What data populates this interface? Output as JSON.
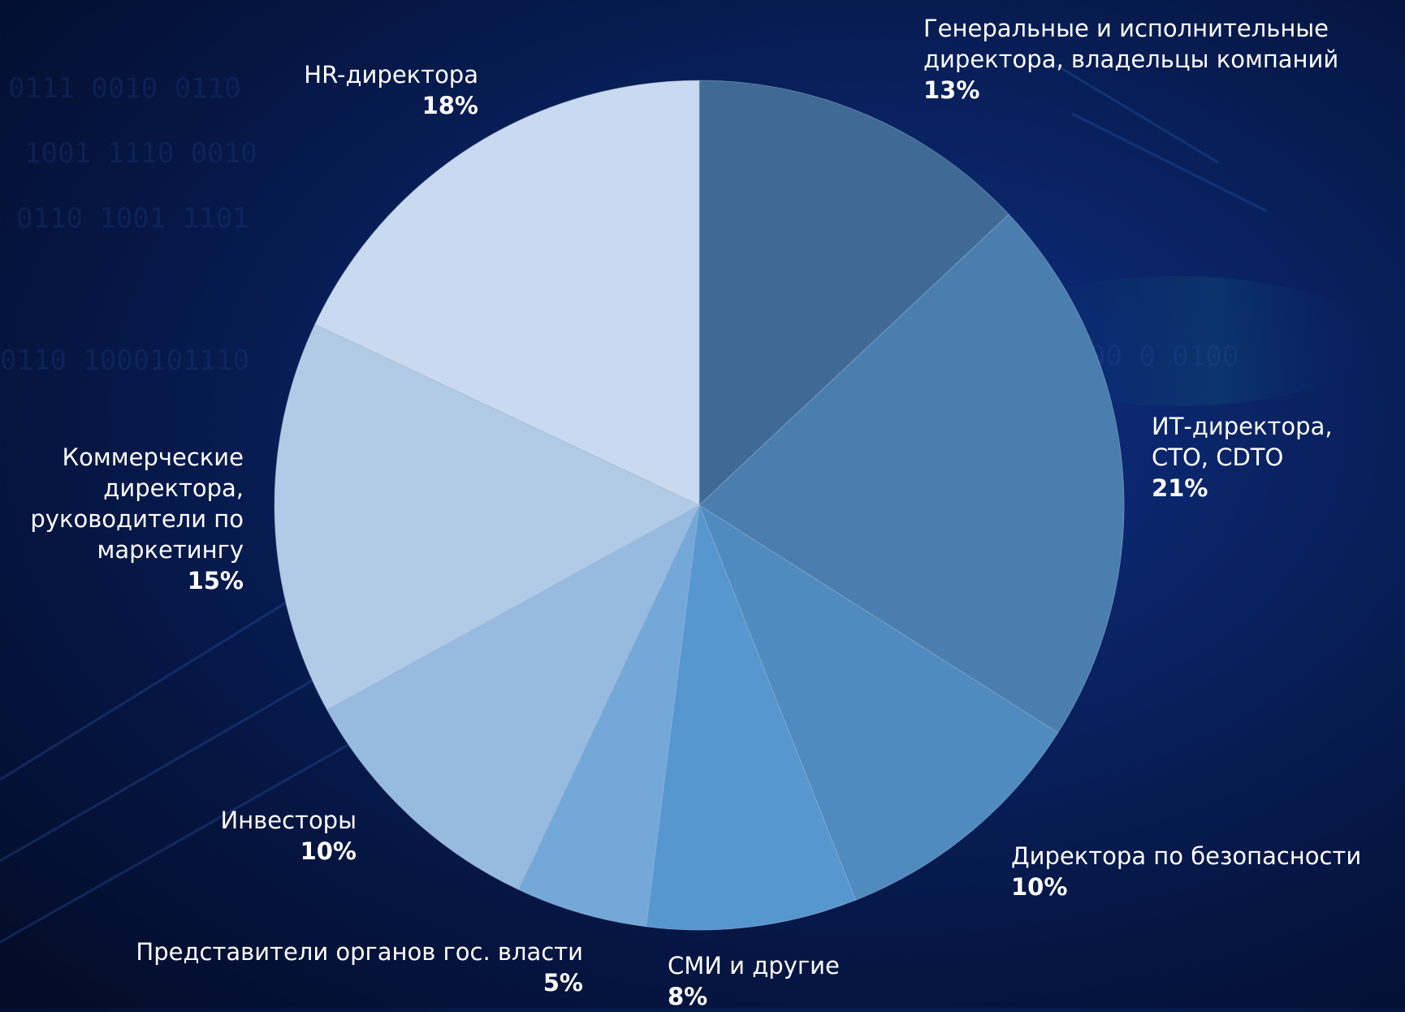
{
  "chart_data": {
    "type": "pie",
    "start_angle_deg": 0,
    "direction": "clockwise",
    "slices": [
      {
        "label_lines": [
          "Генеральные и исполнительные",
          "директора, владельцы компаний"
        ],
        "value": 13,
        "value_label": "13%",
        "color": "#3e6a95"
      },
      {
        "label_lines": [
          "ИТ-директора,",
          "CTO, CDTO"
        ],
        "value": 21,
        "value_label": "21%",
        "color": "#4a7eae"
      },
      {
        "label_lines": [
          "Директора по безопасности"
        ],
        "value": 10,
        "value_label": "10%",
        "color": "#508bbf"
      },
      {
        "label_lines": [
          "СМИ и другие"
        ],
        "value": 8,
        "value_label": "8%",
        "color": "#5797d0"
      },
      {
        "label_lines": [
          "Представители органов гос. власти"
        ],
        "value": 5,
        "value_label": "5%",
        "color": "#74a8d9"
      },
      {
        "label_lines": [
          "Инвесторы"
        ],
        "value": 10,
        "value_label": "10%",
        "color": "#97bbe0"
      },
      {
        "label_lines": [
          "Коммерческие",
          "директора,",
          "руководители по",
          "маркетингу"
        ],
        "value": 15,
        "value_label": "15%",
        "color": "#b1cae6"
      },
      {
        "label_lines": [
          "HR-директора"
        ],
        "value": 18,
        "value_label": "18%",
        "color": "#c8d9f0"
      }
    ]
  }
}
